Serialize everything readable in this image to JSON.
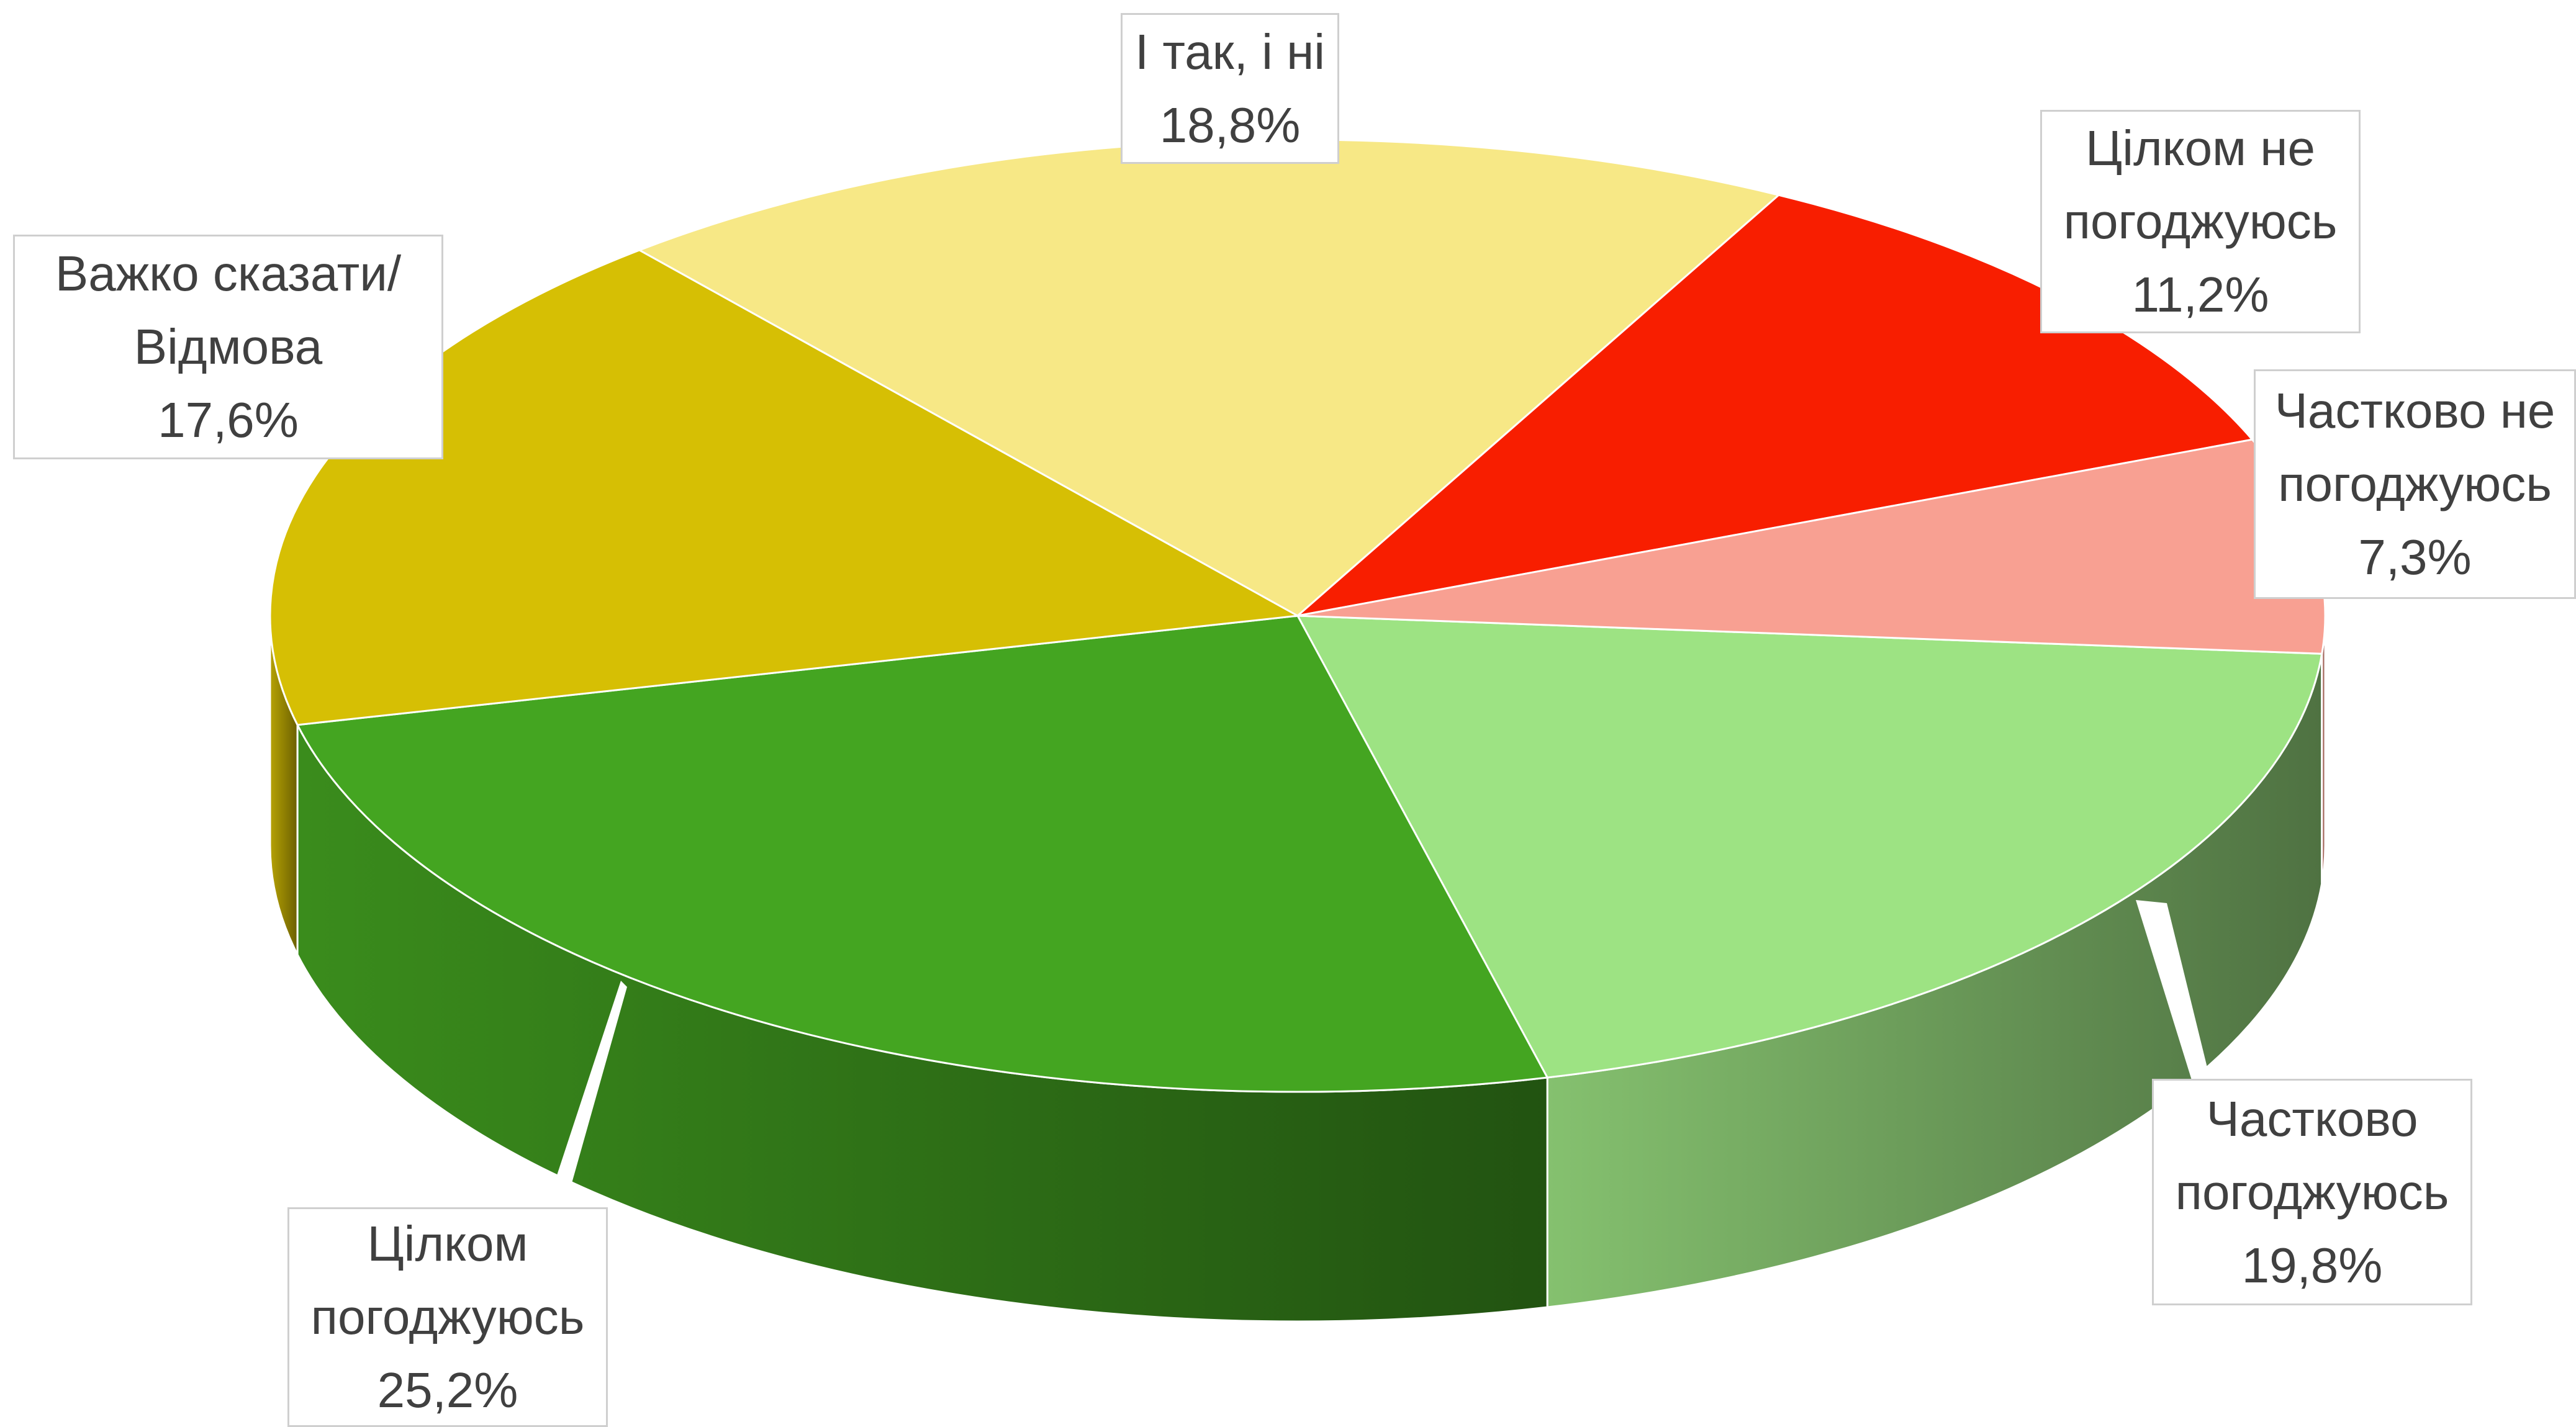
{
  "chart_data": {
    "type": "pie3d",
    "categories": [
      "Частково погоджуюсь",
      "Цілком погоджуюсь",
      "Важко сказати/Відмова",
      "І так, і ні",
      "Цілком не погоджуюсь",
      "Частково не погоджуюсь"
    ],
    "values": [
      19.8,
      25.2,
      17.6,
      18.8,
      11.2,
      7.3
    ],
    "value_labels": [
      "19,8%",
      "25,2%",
      "17,6%",
      "18,8%",
      "11,2%",
      "7,3%"
    ],
    "colors": [
      "#9de383",
      "#44a521",
      "#d6bf04",
      "#f7e886",
      "#f81e00",
      "#f8a092"
    ]
  }
}
